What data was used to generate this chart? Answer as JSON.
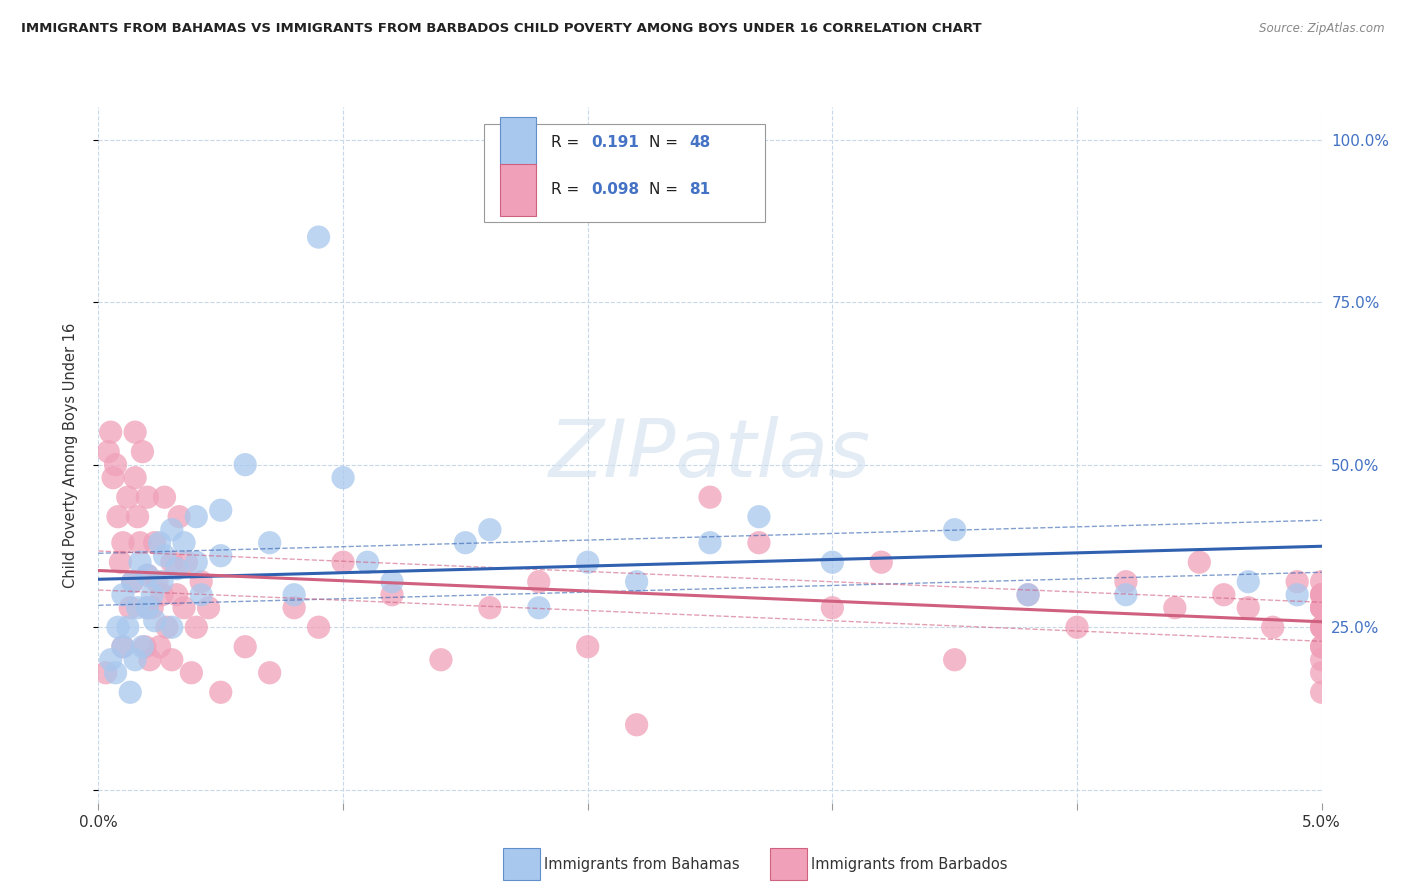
{
  "title": "IMMIGRANTS FROM BAHAMAS VS IMMIGRANTS FROM BARBADOS CHILD POVERTY AMONG BOYS UNDER 16 CORRELATION CHART",
  "source": "Source: ZipAtlas.com",
  "ylabel": "Child Poverty Among Boys Under 16",
  "xlim": [
    0.0,
    0.05
  ],
  "ylim": [
    -0.02,
    1.05
  ],
  "xtick_positions": [
    0.0,
    0.01,
    0.02,
    0.03,
    0.04,
    0.05
  ],
  "xticklabels": [
    "0.0%",
    "",
    "",
    "",
    "",
    "5.0%"
  ],
  "ytick_positions": [
    0.0,
    0.25,
    0.5,
    0.75,
    1.0
  ],
  "yticklabels_right": [
    "",
    "25.0%",
    "50.0%",
    "75.0%",
    "100.0%"
  ],
  "bahamas_R": 0.191,
  "bahamas_N": 48,
  "barbados_R": 0.098,
  "barbados_N": 81,
  "bahamas_color": "#A8C8EE",
  "barbados_color": "#F0A0B8",
  "bahamas_edge_color": "#6090CC",
  "barbados_edge_color": "#D06080",
  "bahamas_line_color": "#3060B0",
  "barbados_line_color": "#D06080",
  "watermark": "ZIPatlas",
  "background_color": "#ffffff",
  "grid_color": "#C8D8E8",
  "bahamas_x": [
    0.0005,
    0.0007,
    0.0008,
    0.001,
    0.001,
    0.0012,
    0.0013,
    0.0014,
    0.0015,
    0.0016,
    0.0017,
    0.0018,
    0.002,
    0.002,
    0.0022,
    0.0023,
    0.0025,
    0.0026,
    0.0027,
    0.003,
    0.003,
    0.0032,
    0.0035,
    0.004,
    0.004,
    0.0042,
    0.005,
    0.005,
    0.006,
    0.007,
    0.008,
    0.009,
    0.01,
    0.011,
    0.012,
    0.015,
    0.016,
    0.018,
    0.02,
    0.022,
    0.025,
    0.027,
    0.03,
    0.035,
    0.038,
    0.042,
    0.047,
    0.049
  ],
  "bahamas_y": [
    0.2,
    0.18,
    0.25,
    0.22,
    0.3,
    0.25,
    0.15,
    0.32,
    0.2,
    0.28,
    0.35,
    0.22,
    0.28,
    0.33,
    0.3,
    0.26,
    0.38,
    0.32,
    0.36,
    0.25,
    0.4,
    0.34,
    0.38,
    0.35,
    0.42,
    0.3,
    0.36,
    0.43,
    0.5,
    0.38,
    0.3,
    0.85,
    0.48,
    0.35,
    0.32,
    0.38,
    0.4,
    0.28,
    0.35,
    0.32,
    0.38,
    0.42,
    0.35,
    0.4,
    0.3,
    0.3,
    0.32,
    0.3
  ],
  "barbados_x": [
    0.0003,
    0.0004,
    0.0005,
    0.0006,
    0.0007,
    0.0008,
    0.0009,
    0.001,
    0.001,
    0.0012,
    0.0013,
    0.0014,
    0.0015,
    0.0015,
    0.0016,
    0.0017,
    0.0018,
    0.0019,
    0.002,
    0.002,
    0.002,
    0.0021,
    0.0022,
    0.0023,
    0.0024,
    0.0025,
    0.0026,
    0.0027,
    0.0028,
    0.003,
    0.003,
    0.0032,
    0.0033,
    0.0035,
    0.0036,
    0.0038,
    0.004,
    0.0042,
    0.0045,
    0.005,
    0.006,
    0.007,
    0.008,
    0.009,
    0.01,
    0.012,
    0.014,
    0.016,
    0.018,
    0.02,
    0.022,
    0.025,
    0.027,
    0.03,
    0.032,
    0.035,
    0.038,
    0.04,
    0.042,
    0.044,
    0.045,
    0.046,
    0.047,
    0.048,
    0.049,
    0.05,
    0.05,
    0.05,
    0.05,
    0.05,
    0.05,
    0.05,
    0.05,
    0.05,
    0.05,
    0.05,
    0.05,
    0.05,
    0.05,
    0.05,
    0.05
  ],
  "barbados_y": [
    0.18,
    0.52,
    0.55,
    0.48,
    0.5,
    0.42,
    0.35,
    0.38,
    0.22,
    0.45,
    0.28,
    0.32,
    0.48,
    0.55,
    0.42,
    0.38,
    0.52,
    0.22,
    0.28,
    0.33,
    0.45,
    0.2,
    0.28,
    0.38,
    0.32,
    0.22,
    0.3,
    0.45,
    0.25,
    0.35,
    0.2,
    0.3,
    0.42,
    0.28,
    0.35,
    0.18,
    0.25,
    0.32,
    0.28,
    0.15,
    0.22,
    0.18,
    0.28,
    0.25,
    0.35,
    0.3,
    0.2,
    0.28,
    0.32,
    0.22,
    0.1,
    0.45,
    0.38,
    0.28,
    0.35,
    0.2,
    0.3,
    0.25,
    0.32,
    0.28,
    0.35,
    0.3,
    0.28,
    0.25,
    0.32,
    0.15,
    0.28,
    0.3,
    0.25,
    0.32,
    0.28,
    0.22,
    0.3,
    0.28,
    0.25,
    0.18,
    0.3,
    0.25,
    0.28,
    0.2,
    0.22
  ]
}
